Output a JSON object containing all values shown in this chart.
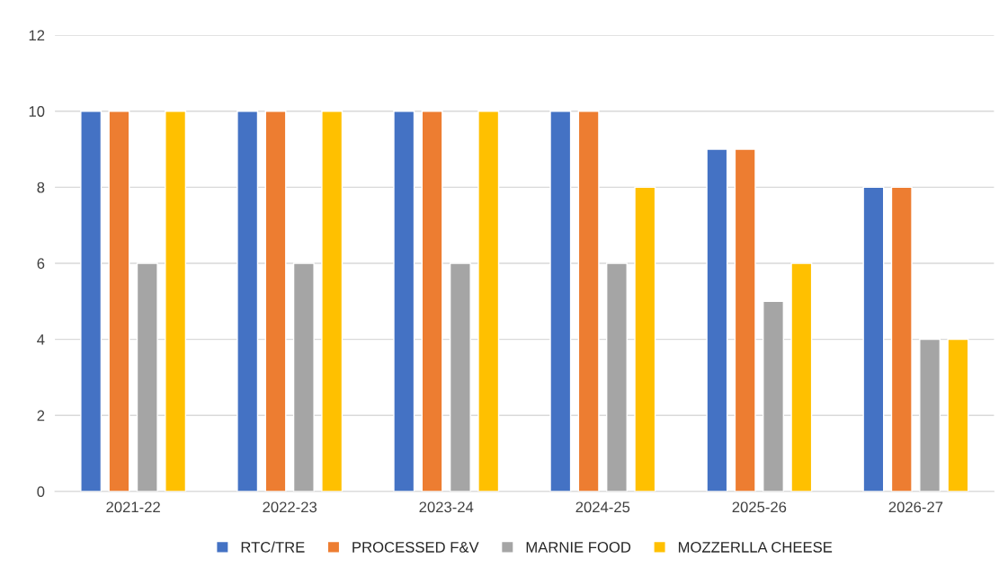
{
  "chart_data": {
    "type": "bar",
    "categories": [
      "2021-22",
      "2022-23",
      "2023-24",
      "2024-25",
      "2025-26",
      "2026-27"
    ],
    "series": [
      {
        "name": "RTC/TRE",
        "color": "#4472c4",
        "values": [
          10,
          10,
          10,
          10,
          9,
          8
        ]
      },
      {
        "name": "PROCESSED F&V",
        "color": "#ed7d31",
        "values": [
          10,
          10,
          10,
          10,
          9,
          8
        ]
      },
      {
        "name": "MARNIE FOOD",
        "color": "#a5a5a5",
        "values": [
          6,
          6,
          6,
          6,
          5,
          4
        ]
      },
      {
        "name": "MOZZERLLA CHEESE",
        "color": "#ffc000",
        "values": [
          10,
          10,
          10,
          8,
          6,
          4
        ]
      }
    ],
    "ylim": [
      0,
      12
    ],
    "yticks": [
      0,
      2,
      4,
      6,
      8,
      10,
      12
    ],
    "grid": "y",
    "legend": "bottom"
  }
}
